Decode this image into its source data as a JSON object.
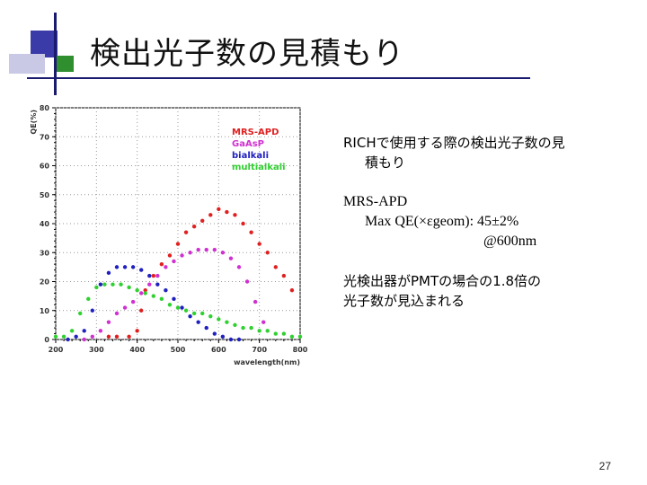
{
  "slide": {
    "title": "検出光子数の見積もり",
    "page_number": "27",
    "bullet1_line1": "RICHで使用する際の検出光子数の見",
    "bullet1_line2": "積もり",
    "bullet2_line1": "MRS-APD",
    "bullet2_line2": "Max QE(×εgeom): 45±2%",
    "bullet2_line3": "@600nm",
    "bullet3_line1": "光検出器がPMTの場合の1.8倍の",
    "bullet3_line2": "光子数が見込まれる"
  },
  "chart_data": {
    "type": "scatter",
    "xlabel": "wavelength(nm)",
    "ylabel": "QE(%)",
    "xlim": [
      200,
      800
    ],
    "ylim": [
      0,
      80
    ],
    "x_ticks": [
      "200",
      "300",
      "400",
      "500",
      "600",
      "700",
      "800"
    ],
    "y_ticks": [
      "0",
      "10",
      "20",
      "30",
      "40",
      "50",
      "60",
      "70",
      "80"
    ],
    "grid": true,
    "legend_position": "top-right",
    "series": [
      {
        "name": "MRS-APD",
        "color": "#e02020",
        "x": [
          330,
          350,
          380,
          400,
          410,
          420,
          440,
          460,
          480,
          500,
          520,
          540,
          560,
          580,
          600,
          620,
          640,
          660,
          680,
          700,
          720,
          740,
          760,
          780
        ],
        "y": [
          1,
          1,
          1,
          3,
          10,
          17,
          22,
          26,
          29,
          33,
          37,
          39,
          41,
          43,
          45,
          44,
          43,
          40,
          37,
          33,
          30,
          25,
          22,
          17
        ]
      },
      {
        "name": "GaAsP",
        "color": "#d030d0",
        "x": [
          270,
          290,
          310,
          330,
          350,
          370,
          390,
          410,
          430,
          450,
          470,
          490,
          510,
          530,
          550,
          570,
          590,
          610,
          630,
          650,
          670,
          690,
          710
        ],
        "y": [
          0,
          1,
          3,
          6,
          9,
          11,
          13,
          16,
          19,
          22,
          25,
          27,
          29,
          30,
          31,
          31,
          31,
          30,
          28,
          25,
          20,
          13,
          6
        ]
      },
      {
        "name": "bialkali",
        "color": "#2020c0",
        "x": [
          230,
          250,
          270,
          290,
          310,
          330,
          350,
          370,
          390,
          410,
          430,
          450,
          470,
          490,
          510,
          530,
          550,
          570,
          590,
          610,
          630,
          650
        ],
        "y": [
          0,
          1,
          3,
          10,
          19,
          23,
          25,
          25,
          25,
          24,
          22,
          19,
          17,
          14,
          11,
          8,
          6,
          4,
          2,
          1,
          0,
          0
        ]
      },
      {
        "name": "multialkali",
        "color": "#30d030",
        "x": [
          200,
          220,
          240,
          260,
          280,
          300,
          320,
          340,
          360,
          380,
          400,
          420,
          440,
          460,
          480,
          500,
          520,
          540,
          560,
          580,
          600,
          620,
          640,
          660,
          680,
          700,
          720,
          740,
          760,
          780,
          800
        ],
        "y": [
          1,
          1,
          3,
          9,
          14,
          18,
          19,
          19,
          19,
          18,
          17,
          16,
          15,
          14,
          12,
          11,
          10,
          9,
          9,
          8,
          7,
          6,
          5,
          4,
          4,
          3,
          3,
          2,
          2,
          1,
          1
        ]
      }
    ]
  }
}
